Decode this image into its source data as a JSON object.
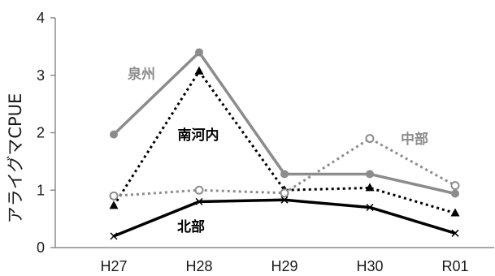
{
  "chart_data": {
    "type": "line",
    "title": "",
    "xlabel": "",
    "ylabel": "アライグマCPUE",
    "categories": [
      "H27",
      "H28",
      "H29",
      "H30",
      "R01"
    ],
    "ylim": [
      0,
      4
    ],
    "yticks": [
      "0",
      "1",
      "2",
      "3",
      "4"
    ],
    "grid": false,
    "legend": "none",
    "series": [
      {
        "name": "泉州",
        "values": [
          1.97,
          3.4,
          1.28,
          1.28,
          0.94
        ],
        "color": "#8c8c8c",
        "line": "solid",
        "marker": "filled-circle"
      },
      {
        "name": "南河内",
        "values": [
          0.73,
          3.07,
          1.0,
          1.04,
          0.6
        ],
        "color": "#000000",
        "line": "dotted",
        "marker": "filled-triangle"
      },
      {
        "name": "中部",
        "values": [
          0.9,
          1.0,
          0.95,
          1.9,
          1.08
        ],
        "color": "#8c8c8c",
        "line": "dotted",
        "marker": "open-circle"
      },
      {
        "name": "北部",
        "values": [
          0.2,
          0.8,
          0.83,
          0.7,
          0.25
        ],
        "color": "#000000",
        "line": "solid",
        "marker": "cross"
      }
    ]
  }
}
